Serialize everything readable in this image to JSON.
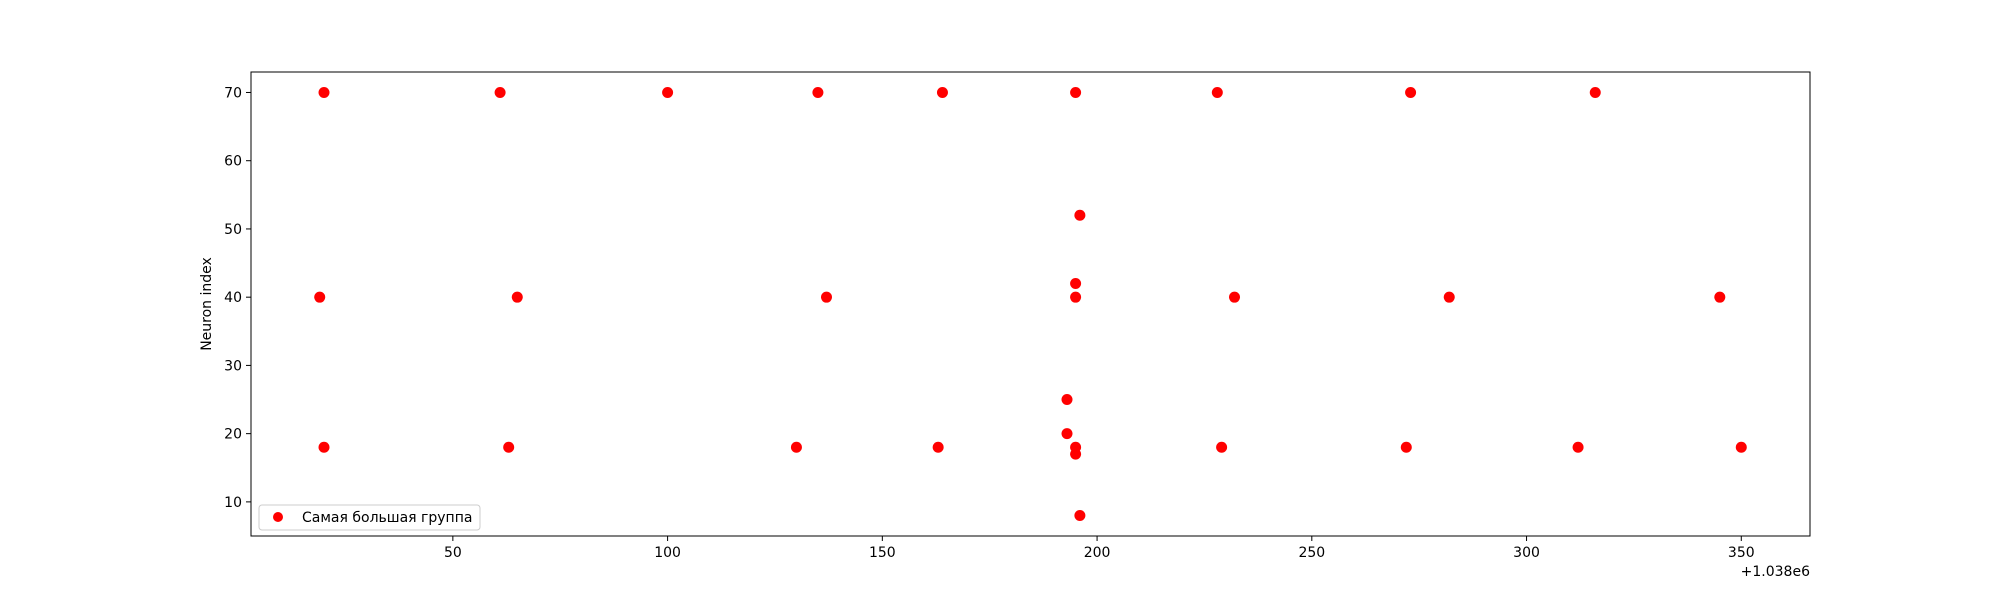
{
  "chart_data": {
    "type": "scatter",
    "xlabel": "",
    "ylabel": "Neuron index",
    "x_offset_label": "+1.038e6",
    "xlim": [
      1038003,
      1038366
    ],
    "ylim": [
      5,
      73
    ],
    "x_ticks": [
      50,
      100,
      150,
      200,
      250,
      300,
      350
    ],
    "y_ticks": [
      10,
      20,
      30,
      40,
      50,
      60,
      70
    ],
    "grid": false,
    "legend": {
      "placement": "lower-left"
    },
    "colors": {
      "marker": "#ff0000",
      "axes": "#000000",
      "legend_border": "#cccccc"
    },
    "series": [
      {
        "name": "Самая большая группа",
        "points": [
          {
            "x": 1038020,
            "y": 70
          },
          {
            "x": 1038061,
            "y": 70
          },
          {
            "x": 1038100,
            "y": 70
          },
          {
            "x": 1038135,
            "y": 70
          },
          {
            "x": 1038164,
            "y": 70
          },
          {
            "x": 1038195,
            "y": 70
          },
          {
            "x": 1038228,
            "y": 70
          },
          {
            "x": 1038273,
            "y": 70
          },
          {
            "x": 1038316,
            "y": 70
          },
          {
            "x": 1038196,
            "y": 52
          },
          {
            "x": 1038195,
            "y": 42
          },
          {
            "x": 1038019,
            "y": 40
          },
          {
            "x": 1038065,
            "y": 40
          },
          {
            "x": 1038137,
            "y": 40
          },
          {
            "x": 1038195,
            "y": 40
          },
          {
            "x": 1038232,
            "y": 40
          },
          {
            "x": 1038282,
            "y": 40
          },
          {
            "x": 1038345,
            "y": 40
          },
          {
            "x": 1038193,
            "y": 25
          },
          {
            "x": 1038193,
            "y": 20
          },
          {
            "x": 1038020,
            "y": 18
          },
          {
            "x": 1038063,
            "y": 18
          },
          {
            "x": 1038130,
            "y": 18
          },
          {
            "x": 1038163,
            "y": 18
          },
          {
            "x": 1038195,
            "y": 18
          },
          {
            "x": 1038229,
            "y": 18
          },
          {
            "x": 1038272,
            "y": 18
          },
          {
            "x": 1038312,
            "y": 18
          },
          {
            "x": 1038350,
            "y": 18
          },
          {
            "x": 1038195,
            "y": 17
          },
          {
            "x": 1038196,
            "y": 8
          }
        ]
      }
    ]
  }
}
